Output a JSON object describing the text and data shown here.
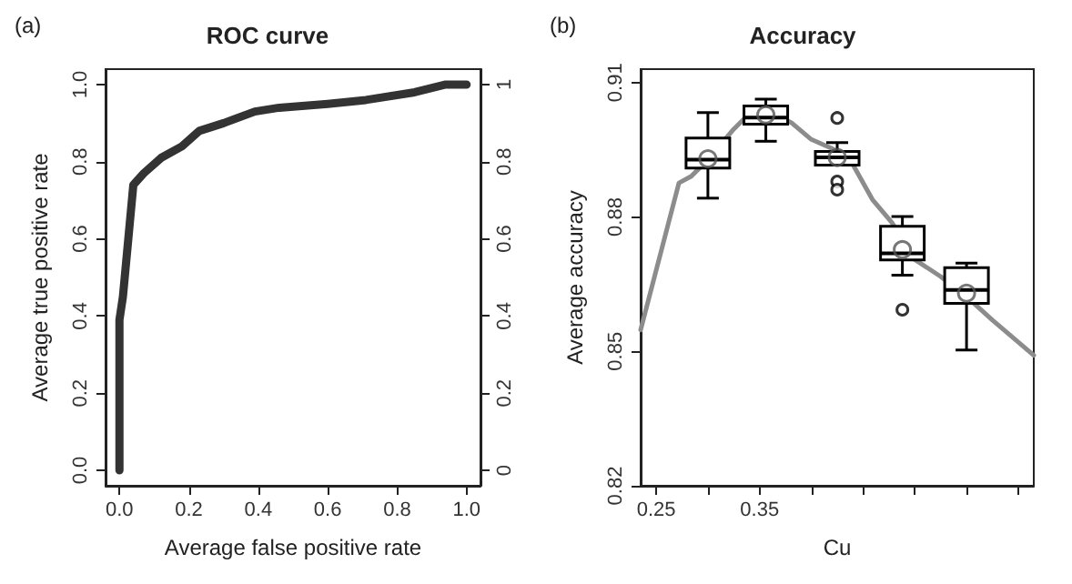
{
  "chart_data": [
    {
      "type": "line",
      "title": "ROC curve",
      "xlabel": "Average false positive rate",
      "ylabel": "Average true positive rate",
      "annotations": [
        "(a)"
      ],
      "xlim": [
        -0.04,
        1.04
      ],
      "ylim": [
        -0.04,
        1.04
      ],
      "xticks": [
        {
          "value": 0,
          "label": "0.0"
        },
        0.2,
        0.4,
        0.6,
        0.8,
        {
          "value": 1,
          "label": "1.0"
        }
      ],
      "yticks": [
        {
          "value": 0,
          "label": "0.0"
        },
        0.2,
        0.4,
        0.6,
        0.8,
        {
          "value": 1,
          "label": "1.0"
        }
      ],
      "y2lim": [
        -0.04,
        1.04
      ],
      "y2ticks": [
        0,
        0.2,
        0.4,
        0.6,
        0.8,
        1
      ],
      "grid": false,
      "marker": "none",
      "line_style": "solid",
      "series": [
        {
          "type": "line",
          "x": [
            0,
            0,
            0.01,
            0.04,
            0.07,
            0.12,
            0.18,
            0.23,
            0.3,
            0.39,
            0.46,
            0.6,
            0.71,
            0.85,
            0.94,
            1
          ],
          "color": "#333333",
          "values": [
            0,
            0.39,
            0.45,
            0.74,
            0.77,
            0.81,
            0.84,
            0.88,
            0.9,
            0.93,
            0.94,
            0.95,
            0.96,
            0.98,
            1,
            1
          ]
        }
      ]
    },
    {
      "type": "box",
      "title": "Accuracy",
      "xlabel": "Cu",
      "ylabel": "Average accuracy",
      "annotations": [
        "(b)"
      ],
      "xlim": [
        0.235,
        0.615
      ],
      "ylim": [
        0.82,
        0.913
      ],
      "xticks": [
        0.25,
        {
          "value": 0.3,
          "label": null
        },
        0.35,
        {
          "value": 0.4,
          "label": null
        },
        {
          "value": 0.45,
          "label": null
        },
        {
          "value": 0.5,
          "label": null
        },
        {
          "value": 0.55,
          "label": null
        },
        {
          "value": 0.6,
          "label": null
        }
      ],
      "yticks": [
        0.82,
        0.85,
        0.88,
        0.91
      ],
      "grid": false,
      "series": [
        {
          "type": "box",
          "color": "#000000",
          "x": [
            0.3,
            0.356,
            0.425,
            0.488,
            0.55
          ],
          "boxes": [
            {
              "low": 0.8842,
              "q1": 0.8909,
              "median": 0.8928,
              "q3": 0.8976,
              "high": 0.9033,
              "mean": 0.893
            },
            {
              "low": 0.8969,
              "q1": 0.9007,
              "median": 0.9022,
              "q3": 0.9048,
              "high": 0.9063,
              "mean": 0.9028
            },
            {
              "low": 0.8916,
              "q1": 0.8916,
              "median": 0.8933,
              "q3": 0.8946,
              "high": 0.8966,
              "mean": 0.8933,
              "outliers": [
                0.9021,
                0.8879,
                0.8861
              ]
            },
            {
              "low": 0.867,
              "q1": 0.8704,
              "median": 0.8719,
              "q3": 0.8779,
              "high": 0.8801,
              "mean": 0.8727,
              "outliers": [
                0.8593
              ]
            },
            {
              "low": 0.8503,
              "q1": 0.8607,
              "median": 0.8637,
              "q3": 0.8687,
              "high": 0.8697,
              "mean": 0.863
            }
          ]
        },
        {
          "type": "line",
          "color": "#8c8c8c",
          "x": [
            0.235,
            0.272,
            0.284,
            0.3,
            0.325,
            0.341,
            0.3625,
            0.381,
            0.4,
            0.419,
            0.4375,
            0.459,
            0.478,
            0.5,
            0.525,
            0.55,
            0.575,
            0.615
          ],
          "values": [
            0.8548,
            0.8876,
            0.8891,
            0.8928,
            0.8996,
            0.9033,
            0.9033,
            0.901,
            0.8973,
            0.8954,
            0.8928,
            0.8839,
            0.8787,
            0.8705,
            0.8667,
            0.8622,
            0.857,
            0.8491
          ]
        }
      ]
    }
  ]
}
